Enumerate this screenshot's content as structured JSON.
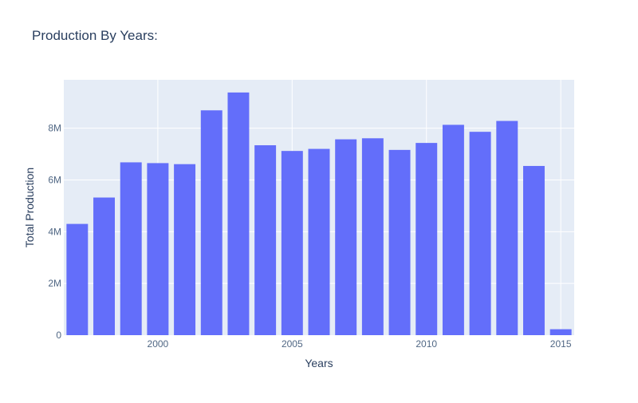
{
  "chart_data": {
    "type": "bar",
    "title": "Production By Years:",
    "xlabel": "Years",
    "ylabel": "Total Production",
    "x": [
      1997,
      1998,
      1999,
      2000,
      2001,
      2002,
      2003,
      2004,
      2005,
      2006,
      2007,
      2008,
      2009,
      2010,
      2011,
      2012,
      2013,
      2014,
      2015
    ],
    "values": [
      4300000,
      5320000,
      6680000,
      6650000,
      6610000,
      8690000,
      9380000,
      7340000,
      7120000,
      7200000,
      7570000,
      7610000,
      7160000,
      7430000,
      8130000,
      7860000,
      8280000,
      6540000,
      230000
    ],
    "xlim": [
      1996.5,
      2015.5
    ],
    "ylim": [
      0,
      9870000
    ],
    "x_ticks": [
      2000,
      2005,
      2010,
      2015
    ],
    "x_tick_labels": [
      "2000",
      "2005",
      "2010",
      "2015"
    ],
    "y_ticks": [
      0,
      2000000,
      4000000,
      6000000,
      8000000
    ],
    "y_tick_labels": [
      "0",
      "2M",
      "4M",
      "6M",
      "8M"
    ],
    "grid": true,
    "bar_color": "#636efa",
    "plot_background": "#e5ecf6",
    "text_color": "#2a3f5f",
    "tick_text_color": "#506784"
  }
}
